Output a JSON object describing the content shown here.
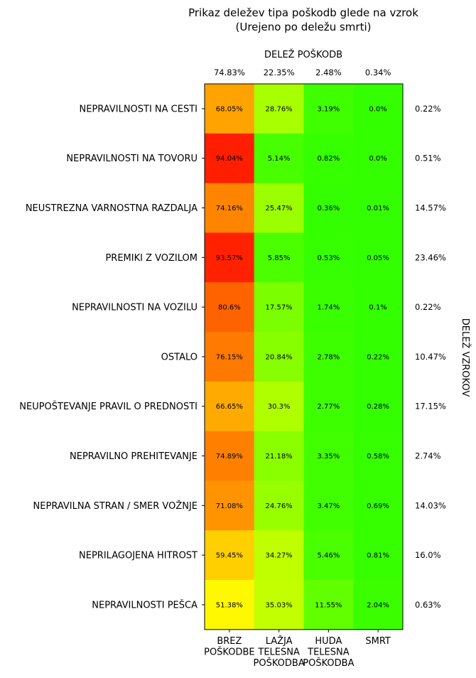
{
  "chart_data": {
    "type": "heatmap",
    "title_line1": "Prikaz deležev tipa poškodb glede na vzrok",
    "title_line2": "(Urejeno po deležu smrti)",
    "top_axis_label": "DELEŽ POŠKODB",
    "right_axis_label": "DELEŽ VZROKOV",
    "columns": [
      {
        "label_lines": [
          "BREZ",
          "POŠKODBE"
        ],
        "share": "74.83%"
      },
      {
        "label_lines": [
          "LAŽJA",
          "TELESNA",
          "POŠKODBA"
        ],
        "share": "22.35%"
      },
      {
        "label_lines": [
          "HUDA",
          "TELESNA",
          "POŠKODBA"
        ],
        "share": "2.48%"
      },
      {
        "label_lines": [
          "SMRT"
        ],
        "share": "0.34%"
      }
    ],
    "rows": [
      {
        "label": "NEPRAVILNOSTI NA CESTI",
        "values": [
          68.05,
          28.76,
          3.19,
          0.0
        ],
        "cell_labels": [
          "68.05%",
          "28.76%",
          "3.19%",
          "0.0%"
        ],
        "share": "0.22%"
      },
      {
        "label": "NEPRAVILNOSTI NA TOVORU",
        "values": [
          94.04,
          5.14,
          0.82,
          0.0
        ],
        "cell_labels": [
          "94.04%",
          "5.14%",
          "0.82%",
          "0.0%"
        ],
        "share": "0.51%"
      },
      {
        "label": "NEUSTREZNA VARNOSTNA RAZDALJA",
        "values": [
          74.16,
          25.47,
          0.36,
          0.01
        ],
        "cell_labels": [
          "74.16%",
          "25.47%",
          "0.36%",
          "0.01%"
        ],
        "share": "14.57%"
      },
      {
        "label": "PREMIKI Z VOZILOM",
        "values": [
          93.57,
          5.85,
          0.53,
          0.05
        ],
        "cell_labels": [
          "93.57%",
          "5.85%",
          "0.53%",
          "0.05%"
        ],
        "share": "23.46%"
      },
      {
        "label": "NEPRAVILNOSTI NA VOZILU",
        "values": [
          80.6,
          17.57,
          1.74,
          0.1
        ],
        "cell_labels": [
          "80.6%",
          "17.57%",
          "1.74%",
          "0.1%"
        ],
        "share": "0.22%"
      },
      {
        "label": "OSTALO",
        "values": [
          76.15,
          20.84,
          2.78,
          0.22
        ],
        "cell_labels": [
          "76.15%",
          "20.84%",
          "2.78%",
          "0.22%"
        ],
        "share": "10.47%"
      },
      {
        "label": "NEUPOŠTEVANJE PRAVIL O PREDNOSTI",
        "values": [
          66.65,
          30.3,
          2.77,
          0.28
        ],
        "cell_labels": [
          "66.65%",
          "30.3%",
          "2.77%",
          "0.28%"
        ],
        "share": "17.15%"
      },
      {
        "label": "NEPRAVILNO PREHITEVANJE",
        "values": [
          74.89,
          21.18,
          3.35,
          0.58
        ],
        "cell_labels": [
          "74.89%",
          "21.18%",
          "3.35%",
          "0.58%"
        ],
        "share": "2.74%"
      },
      {
        "label": "NEPRAVILNA STRAN / SMER VOŽNJE",
        "values": [
          71.08,
          24.76,
          3.47,
          0.69
        ],
        "cell_labels": [
          "71.08%",
          "24.76%",
          "3.47%",
          "0.69%"
        ],
        "share": "14.03%"
      },
      {
        "label": "NEPRILAGOJENA HITROST",
        "values": [
          59.45,
          34.27,
          5.46,
          0.81
        ],
        "cell_labels": [
          "59.45%",
          "34.27%",
          "5.46%",
          "0.81%"
        ],
        "share": "16.0%"
      },
      {
        "label": "NEPRAVILNOSTI PEŠCA",
        "values": [
          51.38,
          35.03,
          11.55,
          2.04
        ],
        "cell_labels": [
          "51.38%",
          "35.03%",
          "11.55%",
          "2.04%"
        ],
        "share": "0.63%"
      }
    ],
    "colormap": {
      "low": "#33ff00",
      "mid": "#ffff00",
      "high": "#ff0000",
      "range": [
        0,
        100
      ]
    },
    "grid": false
  }
}
